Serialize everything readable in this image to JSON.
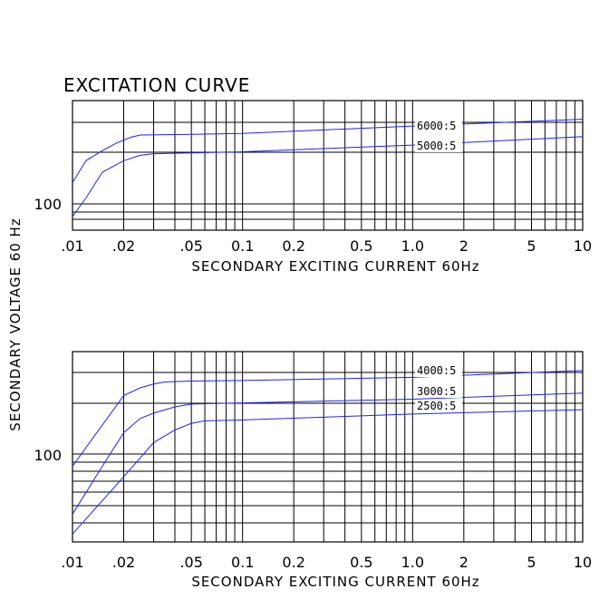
{
  "title": "EXCITATION CURVE",
  "ylabel": "SECONDARY VOLTAGE 60 Hz",
  "line_color": "#2020ff",
  "chart_data": [
    {
      "type": "line",
      "xscale": "log",
      "xlim": [
        0.01,
        10
      ],
      "xticks": [
        0.01,
        0.02,
        0.05,
        0.1,
        0.2,
        0.5,
        1.0,
        2,
        5,
        10
      ],
      "xtick_labels": [
        ".01",
        ".02",
        ".05",
        "0.1",
        "0.2",
        "0.5",
        "1.0",
        "2",
        "5",
        "10"
      ],
      "xlabel": "SECONDARY EXCITING CURRENT 60Hz",
      "yscale": "log",
      "ylim": [
        85,
        400
      ],
      "ytick_labels": [
        {
          "value": 100,
          "label": "100"
        }
      ],
      "grid": true,
      "series": [
        {
          "name": "6000:5",
          "points": [
            [
              0.01,
              150
            ],
            [
              0.012,
              195
            ],
            [
              0.015,
              220
            ],
            [
              0.018,
              240
            ],
            [
              0.022,
              258
            ],
            [
              0.025,
              265
            ],
            [
              0.05,
              267
            ],
            [
              0.1,
              270
            ],
            [
              1.0,
              295
            ],
            [
              10,
              320
            ]
          ]
        },
        {
          "name": "5000:5",
          "points": [
            [
              0.01,
              100
            ],
            [
              0.012,
              125
            ],
            [
              0.015,
              170
            ],
            [
              0.02,
              195
            ],
            [
              0.025,
              208
            ],
            [
              0.03,
              212
            ],
            [
              0.05,
              214
            ],
            [
              0.1,
              217
            ],
            [
              1.0,
              235
            ],
            [
              10,
              260
            ]
          ]
        }
      ]
    },
    {
      "type": "line",
      "xscale": "log",
      "xlim": [
        0.01,
        10
      ],
      "xticks": [
        0.01,
        0.02,
        0.05,
        0.1,
        0.2,
        0.5,
        1.0,
        2,
        5,
        10
      ],
      "xtick_labels": [
        ".01",
        ".02",
        ".05",
        "0.1",
        "0.2",
        "0.5",
        "1.0",
        "2",
        "5",
        "10"
      ],
      "xlabel": "SECONDARY EXCITING CURRENT 60Hz",
      "yscale": "log",
      "ylim": [
        40,
        400
      ],
      "ytick_labels": [
        {
          "value": 100,
          "label": "100"
        }
      ],
      "grid": true,
      "series": [
        {
          "name": "4000:5",
          "points": [
            [
              0.01,
              100
            ],
            [
              0.02,
              235
            ],
            [
              0.025,
              258
            ],
            [
              0.03,
              270
            ],
            [
              0.035,
              277
            ],
            [
              0.05,
              280
            ],
            [
              0.1,
              282
            ],
            [
              1.0,
              293
            ],
            [
              10,
              318
            ]
          ]
        },
        {
          "name": "3000:5",
          "points": [
            [
              0.01,
              56
            ],
            [
              0.015,
              100
            ],
            [
              0.02,
              150
            ],
            [
              0.025,
              178
            ],
            [
              0.03,
              190
            ],
            [
              0.04,
              205
            ],
            [
              0.05,
              212
            ],
            [
              0.1,
              215
            ],
            [
              1.0,
              225
            ],
            [
              10,
              242
            ]
          ]
        },
        {
          "name": "2500:5",
          "points": [
            [
              0.01,
              44
            ],
            [
              0.02,
              88
            ],
            [
              0.03,
              133
            ],
            [
              0.04,
              155
            ],
            [
              0.05,
              168
            ],
            [
              0.06,
              173
            ],
            [
              0.1,
              175
            ],
            [
              1.0,
              188
            ],
            [
              10,
              198
            ]
          ]
        }
      ]
    }
  ]
}
